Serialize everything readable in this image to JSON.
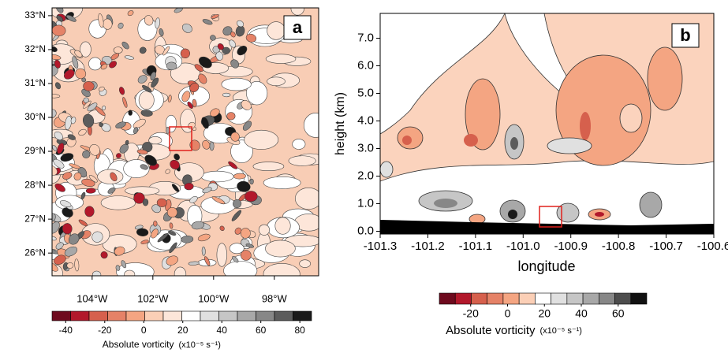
{
  "chart_data": [
    {
      "type": "contour",
      "panel_label": "a",
      "xlim": [
        -105.32,
        -96.54
      ],
      "ylim": [
        25.33,
        33.23
      ],
      "xticks": [
        {
          "value": -104,
          "label": "104°W"
        },
        {
          "value": -102,
          "label": "102°W"
        },
        {
          "value": -100,
          "label": "100°W"
        },
        {
          "value": -98,
          "label": "98°W"
        }
      ],
      "yticks": [
        {
          "value": 26,
          "label": "26°N"
        },
        {
          "value": 27,
          "label": "27°N"
        },
        {
          "value": 28,
          "label": "28°N"
        },
        {
          "value": 29,
          "label": "29°N"
        },
        {
          "value": 30,
          "label": "30°N"
        },
        {
          "value": 31,
          "label": "31°N"
        },
        {
          "value": 32,
          "label": "32°N"
        },
        {
          "value": 33,
          "label": "33°N"
        }
      ],
      "colorbar": {
        "label": "Absolute vorticity",
        "units": "(x10⁻⁵ s⁻¹)",
        "lim": [
          -47,
          86
        ],
        "ticks": [
          -40,
          -20,
          0,
          20,
          40,
          60,
          80
        ],
        "colors": [
          "#6e0a1e",
          "#b2182b",
          "#d6604d",
          "#e58267",
          "#f4a582",
          "#fbcfb6",
          "#fde6d9",
          "#ffffff",
          "#e0e0e0",
          "#c6c6c6",
          "#a8a8a8",
          "#878787",
          "#5c5c5c",
          "#1a1a1a"
        ]
      }
    },
    {
      "type": "contour",
      "panel_label": "b",
      "x_label": "longitude",
      "y_label": "height (km)",
      "xlim": [
        -101.3,
        -100.6
      ],
      "ylim": [
        -0.1,
        7.9
      ],
      "xticks": [
        -101.3,
        -101.2,
        -101.1,
        {
          "value": -101,
          "label": "-101.0"
        },
        -100.9,
        -100.8,
        -100.7,
        -100.6
      ],
      "yticks": [
        {
          "value": 0,
          "label": "0.0"
        },
        {
          "value": 1,
          "label": "1.0"
        },
        {
          "value": 2,
          "label": "2.0"
        },
        {
          "value": 3,
          "label": "3.0"
        },
        {
          "value": 4,
          "label": "4.0"
        },
        {
          "value": 5,
          "label": "5.0"
        },
        {
          "value": 6,
          "label": "6.0"
        },
        {
          "value": 7,
          "label": "7.0"
        }
      ],
      "colorbar": {
        "label": "Absolute vorticity",
        "units": "(x10⁻⁵ s⁻¹)",
        "lim": [
          -37,
          75.5
        ],
        "ticks": [
          -20,
          0,
          20,
          40,
          60
        ],
        "colors": [
          "#6e0a1e",
          "#b2182b",
          "#d6604d",
          "#e58267",
          "#f4a582",
          "#fbcfb6",
          "#ffffff",
          "#e0e0e0",
          "#c6c6c6",
          "#a8a8a8",
          "#878787",
          "#4d4d4d",
          "#111111"
        ]
      }
    }
  ]
}
